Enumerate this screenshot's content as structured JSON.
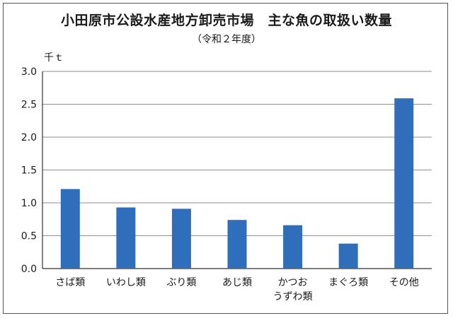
{
  "chart_data": {
    "type": "bar",
    "title": "小田原市公設水産地方卸売市場　主な魚の取扱い数量",
    "subtitle": "（令和２年度）",
    "ylabel": "千ｔ",
    "xlabel": "",
    "ylim": [
      0,
      3.0
    ],
    "yticks": [
      "0.0",
      "0.5",
      "1.0",
      "1.5",
      "2.0",
      "2.5",
      "3.0"
    ],
    "grid": true,
    "bar_color": "#2F6EBA",
    "categories": [
      [
        "さば類"
      ],
      [
        "いわし類"
      ],
      [
        "ぶり類"
      ],
      [
        "あじ類"
      ],
      [
        "かつお",
        "うずわ類"
      ],
      [
        "まぐろ類"
      ],
      [
        "その他"
      ]
    ],
    "values": [
      1.21,
      0.93,
      0.91,
      0.74,
      0.66,
      0.38,
      2.59
    ]
  }
}
